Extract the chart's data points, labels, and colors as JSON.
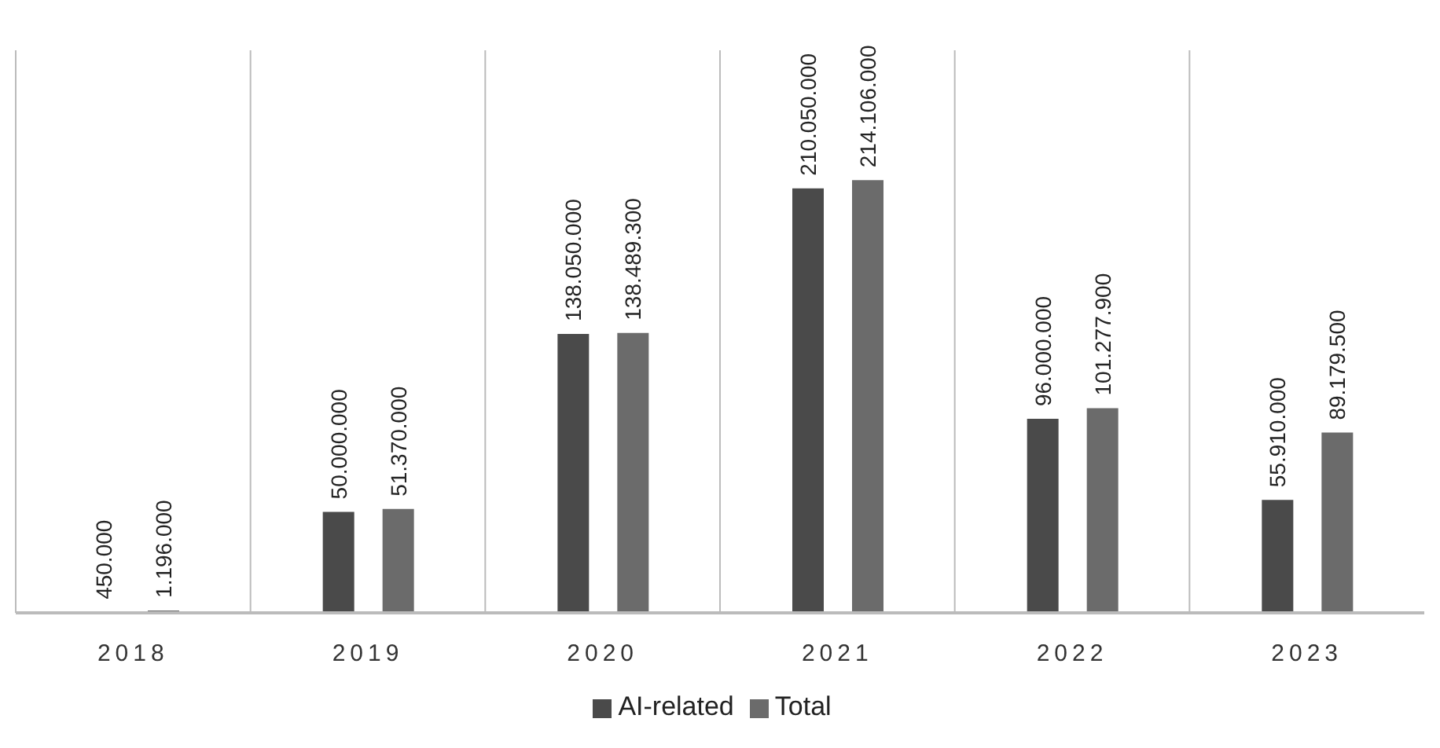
{
  "chart_data": {
    "type": "bar",
    "categories": [
      "2018",
      "2019",
      "2020",
      "2021",
      "2022",
      "2023"
    ],
    "series": [
      {
        "name": "AI-related",
        "color": "#4a4a4a",
        "values": [
          450000,
          50000000,
          138050000,
          210050000,
          96000000,
          55910000
        ],
        "value_labels": [
          "450.000",
          "50.000.000",
          "138.050.000",
          "210.050.000",
          "96.000.000",
          "55.910.000"
        ]
      },
      {
        "name": "Total",
        "color": "#6b6b6b",
        "values": [
          1196000,
          51370000,
          138489300,
          214106000,
          101277900,
          89179500
        ],
        "value_labels": [
          "1.196.000",
          "51.370.000",
          "138.489.300",
          "214.106.000",
          "101.277.900",
          "89.179.500"
        ]
      }
    ],
    "grid": "x",
    "legend": "bottom"
  }
}
